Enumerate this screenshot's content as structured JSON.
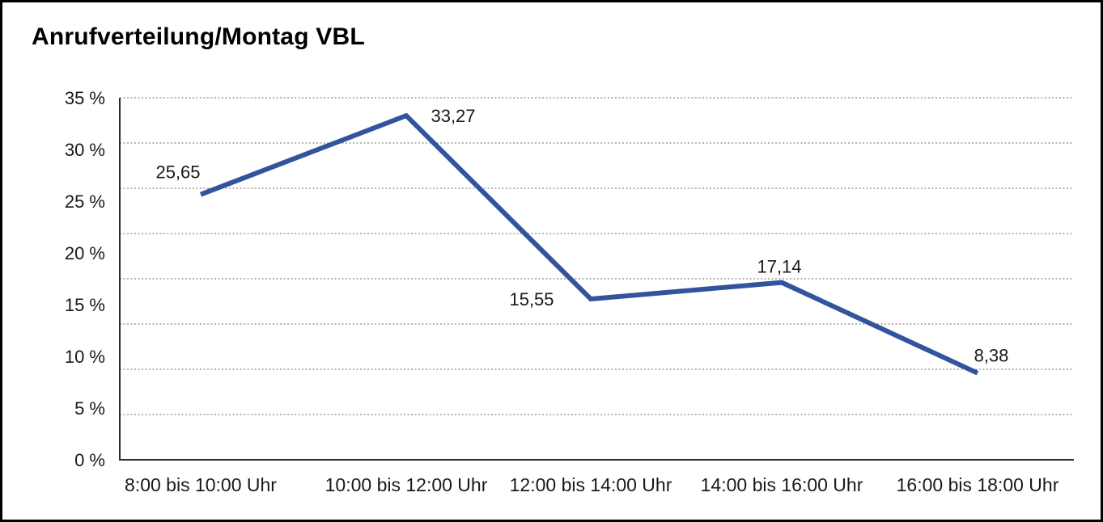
{
  "page": {
    "title": "Anrufverteilung/Montag VBL"
  },
  "chart_data": {
    "type": "line",
    "title": "Anrufverteilung/Montag VBL",
    "categories": [
      "8:00 bis 10:00 Uhr",
      "10:00 bis 12:00 Uhr",
      "12:00 bis 14:00 Uhr",
      "14:00 bis 16:00 Uhr",
      "16:00 bis 18:00 Uhr"
    ],
    "values": [
      25.65,
      33.27,
      15.55,
      17.14,
      8.38
    ],
    "value_labels": [
      "25,65",
      "33,27",
      "15,55",
      "17,14",
      "8,38"
    ],
    "xlabel": "",
    "ylabel": "",
    "ylim": [
      0,
      35
    ],
    "y_tick_values": [
      0,
      5,
      10,
      15,
      20,
      25,
      30,
      35
    ],
    "y_tick_labels": [
      "0 %",
      "5 %",
      "10 %",
      "15 %",
      "20 %",
      "25 %",
      "30 %",
      "35 %"
    ],
    "grid": {
      "horizontal": true,
      "style": "dotted",
      "divisions": 8
    },
    "legend": "none",
    "line_color": "#31549D",
    "axis_color": "#2b2b2b",
    "gridline_color": "#6e6e6e",
    "text_color": "#191919"
  }
}
